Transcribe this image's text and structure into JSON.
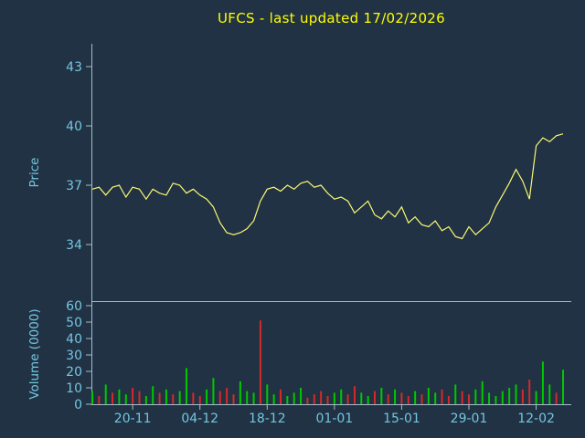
{
  "title": "UFCS - last updated 17/02/2026",
  "colors": {
    "background": "#203243",
    "title": "#ffff00",
    "axis": "#a7bccb",
    "tick_text": "#74c6e0",
    "price_line": "#fbf875",
    "volume_up": "#00c800",
    "volume_down": "#d42a2a"
  },
  "chart_data": {
    "type": "line",
    "title": "UFCS - last updated 17/02/2026",
    "legend": "none",
    "grid": false,
    "n_points": 71,
    "x_tick_labels": [
      "20-11",
      "04-12",
      "18-12",
      "01-01",
      "15-01",
      "29-01",
      "12-02"
    ],
    "x_tick_indices": [
      6,
      16,
      26,
      36,
      46,
      56,
      66
    ],
    "price_panel": {
      "ylabel": "Price",
      "yticks": [
        34,
        37,
        40,
        43
      ],
      "ylim": [
        31.4,
        44.1
      ],
      "prices": [
        36.8,
        36.9,
        36.5,
        36.9,
        37.0,
        36.4,
        36.9,
        36.8,
        36.3,
        36.8,
        36.6,
        36.5,
        37.1,
        37.0,
        36.6,
        36.8,
        36.5,
        36.3,
        35.9,
        35.1,
        34.6,
        34.5,
        34.6,
        34.8,
        35.2,
        36.2,
        36.8,
        36.9,
        36.7,
        37.0,
        36.8,
        37.1,
        37.2,
        36.9,
        37.0,
        36.6,
        36.3,
        36.4,
        36.2,
        35.6,
        35.9,
        36.2,
        35.5,
        35.3,
        35.7,
        35.4,
        35.9,
        35.1,
        35.4,
        35.0,
        34.9,
        35.2,
        34.7,
        34.9,
        34.4,
        34.3,
        34.9,
        34.5,
        34.8,
        35.1,
        35.9,
        36.5,
        37.1,
        37.8,
        37.2,
        36.3,
        39.0,
        39.4,
        39.2,
        39.5,
        39.6
      ]
    },
    "volume_panel": {
      "ylabel": "Volume (0000)",
      "yticks": [
        0,
        10,
        20,
        30,
        40,
        50,
        60
      ],
      "ylim": [
        0,
        63
      ],
      "volumes": [
        8,
        5,
        12,
        7,
        9,
        6,
        10,
        8,
        5,
        11,
        7,
        9,
        6,
        8,
        22,
        7,
        5,
        9,
        16,
        8,
        10,
        6,
        14,
        8,
        7,
        51,
        12,
        6,
        9,
        5,
        7,
        10,
        4,
        6,
        8,
        5,
        7,
        9,
        6,
        11,
        7,
        5,
        8,
        10,
        6,
        9,
        7,
        5,
        8,
        6,
        10,
        7,
        9,
        5,
        12,
        8,
        6,
        9,
        14,
        7,
        5,
        8,
        10,
        12,
        9,
        15,
        8,
        26,
        12,
        7,
        21
      ],
      "directions": [
        "u",
        "d",
        "u",
        "d",
        "u",
        "u",
        "d",
        "d",
        "u",
        "u",
        "d",
        "u",
        "d",
        "u",
        "u",
        "d",
        "d",
        "u",
        "u",
        "d",
        "d",
        "d",
        "u",
        "u",
        "u",
        "d",
        "u",
        "u",
        "d",
        "u",
        "u",
        "u",
        "d",
        "d",
        "d",
        "d",
        "u",
        "u",
        "d",
        "d",
        "u",
        "u",
        "d",
        "u",
        "d",
        "u",
        "d",
        "d",
        "u",
        "d",
        "u",
        "u",
        "d",
        "d",
        "u",
        "d",
        "d",
        "u",
        "u",
        "u",
        "u",
        "u",
        "u",
        "u",
        "d",
        "d",
        "u",
        "u",
        "u",
        "d",
        "u"
      ]
    }
  }
}
